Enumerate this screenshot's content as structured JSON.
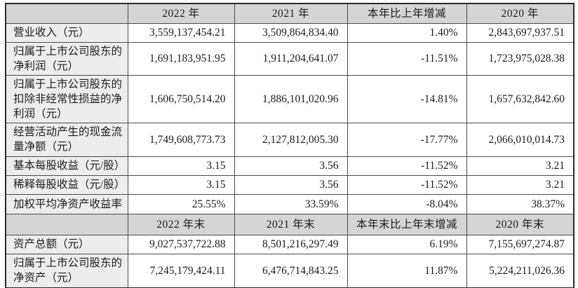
{
  "table": {
    "section1": {
      "headers": [
        "",
        "2022 年",
        "2021 年",
        "本年比上年增减",
        "2020 年"
      ],
      "rows": [
        {
          "label": "营业收入（元）",
          "values": [
            "3,559,137,454.21",
            "3,509,864,834.40",
            "1.40%",
            "2,843,697,937.51"
          ]
        },
        {
          "label": "归属于上市公司股东的净利润（元）",
          "values": [
            "1,691,183,951.95",
            "1,911,204,641.07",
            "-11.51%",
            "1,723,975,028.38"
          ]
        },
        {
          "label": "归属于上市公司股东的扣除非经常性损益的净利润（元）",
          "values": [
            "1,606,750,514.20",
            "1,886,101,020.96",
            "-14.81%",
            "1,657,632,842.60"
          ]
        },
        {
          "label": "经营活动产生的现金流量净额（元）",
          "values": [
            "1,749,608,773.73",
            "2,127,812,005.30",
            "-17.77%",
            "2,066,010,014.73"
          ]
        },
        {
          "label": "基本每股收益（元/股）",
          "values": [
            "3.15",
            "3.56",
            "-11.52%",
            "3.21"
          ]
        },
        {
          "label": "稀释每股收益（元/股）",
          "values": [
            "3.15",
            "3.56",
            "-11.52%",
            "3.21"
          ]
        },
        {
          "label": "加权平均净资产收益率",
          "values": [
            "25.55%",
            "33.59%",
            "-8.04%",
            "38.37%"
          ]
        }
      ]
    },
    "section2": {
      "headers": [
        "",
        "2022 年末",
        "2021 年末",
        "本年末比上年末增减",
        "2020 年末"
      ],
      "rows": [
        {
          "label": "资产总额（元）",
          "values": [
            "9,027,537,722.88",
            "8,501,216,297.49",
            "6.19%",
            "7,155,697,274.87"
          ]
        },
        {
          "label": "归属于上市公司股东的净资产（元）",
          "values": [
            "7,245,179,424.11",
            "6,476,714,843.25",
            "11.87%",
            "5,224,211,026.36"
          ]
        }
      ]
    },
    "colors": {
      "header_bg": "#d5d5d5",
      "label_bg": "#ededed",
      "border": "#4a4a4a",
      "text": "#1c1c1c"
    }
  }
}
